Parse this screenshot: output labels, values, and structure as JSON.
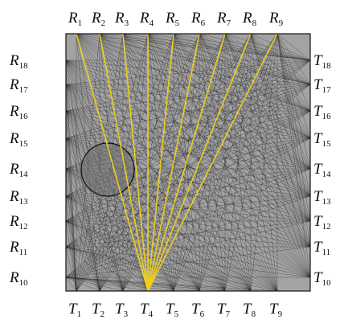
{
  "figure": {
    "top_labels": [
      {
        "l": "R",
        "n": "1"
      },
      {
        "l": "R",
        "n": "2"
      },
      {
        "l": "R",
        "n": "3"
      },
      {
        "l": "R",
        "n": "4"
      },
      {
        "l": "R",
        "n": "5"
      },
      {
        "l": "R",
        "n": "6"
      },
      {
        "l": "R",
        "n": "7"
      },
      {
        "l": "R",
        "n": "8"
      },
      {
        "l": "R",
        "n": "9"
      }
    ],
    "bottom_labels": [
      {
        "l": "T",
        "n": "1"
      },
      {
        "l": "T",
        "n": "2"
      },
      {
        "l": "T",
        "n": "3"
      },
      {
        "l": "T",
        "n": "4"
      },
      {
        "l": "T",
        "n": "5"
      },
      {
        "l": "T",
        "n": "6"
      },
      {
        "l": "T",
        "n": "7"
      },
      {
        "l": "T",
        "n": "8"
      },
      {
        "l": "T",
        "n": "9"
      }
    ],
    "left_labels": [
      {
        "l": "R",
        "n": "18"
      },
      {
        "l": "R",
        "n": "17"
      },
      {
        "l": "R",
        "n": "16"
      },
      {
        "l": "R",
        "n": "15"
      },
      {
        "l": "R",
        "n": "14"
      },
      {
        "l": "R",
        "n": "13"
      },
      {
        "l": "R",
        "n": "12"
      },
      {
        "l": "R",
        "n": "11"
      },
      {
        "l": "R",
        "n": "10"
      }
    ],
    "right_labels": [
      {
        "l": "T",
        "n": "18"
      },
      {
        "l": "T",
        "n": "17"
      },
      {
        "l": "T",
        "n": "16"
      },
      {
        "l": "T",
        "n": "15"
      },
      {
        "l": "T",
        "n": "14"
      },
      {
        "l": "T",
        "n": "13"
      },
      {
        "l": "T",
        "n": "12"
      },
      {
        "l": "T",
        "n": "11"
      },
      {
        "l": "T",
        "n": "10"
      }
    ],
    "highlighted_source": {
      "l": "T",
      "n": "4"
    },
    "colors": {
      "background": "#a3a3a3",
      "ray": "#1a1a1a",
      "highlight_ray": "#f2d21a",
      "inclusion_fill": "#6e6e6e",
      "frame": "#222222"
    }
  }
}
